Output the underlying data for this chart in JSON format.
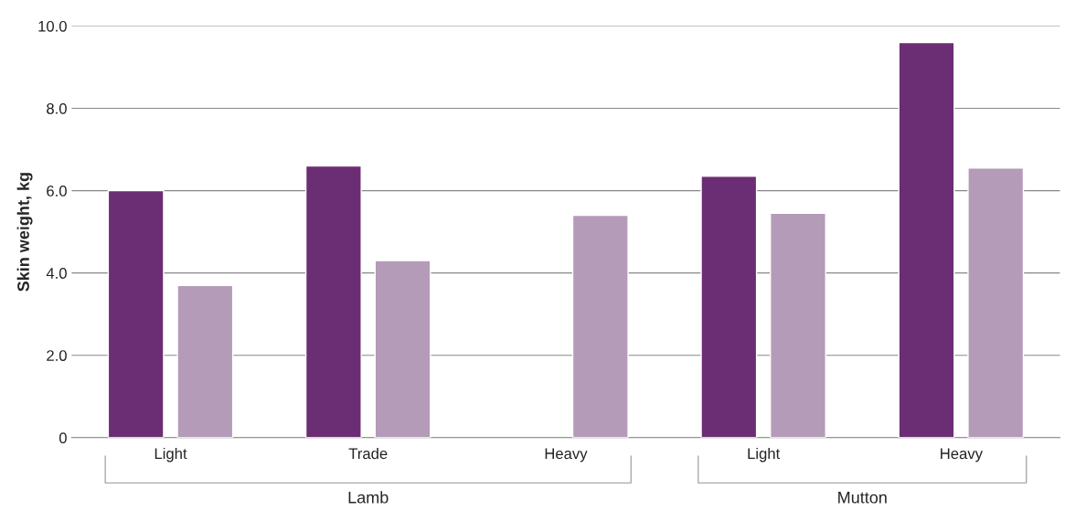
{
  "chart_data": {
    "type": "bar",
    "ylabel": "Skin weight, kg",
    "categories": [
      "Light",
      "Trade",
      "Heavy",
      "Light",
      "Heavy"
    ],
    "series": [
      {
        "color": "#6b2d73",
        "values": [
          6.0,
          6.6,
          null,
          6.35,
          9.6
        ]
      },
      {
        "color": "#b49bb8",
        "values": [
          3.7,
          4.3,
          5.4,
          5.45,
          6.55
        ]
      }
    ],
    "ylim": [
      0,
      10
    ],
    "yticks": [
      0,
      {
        "value": 2,
        "label": "2.0"
      },
      {
        "value": 4,
        "label": "4.0"
      },
      {
        "value": 6,
        "label": "6.0"
      },
      {
        "value": 8,
        "label": "8.0"
      },
      {
        "value": 10,
        "label": "10.0"
      }
    ],
    "grid": "y",
    "legend": false,
    "annotations": [
      "Lamb",
      "Mutton"
    ]
  }
}
